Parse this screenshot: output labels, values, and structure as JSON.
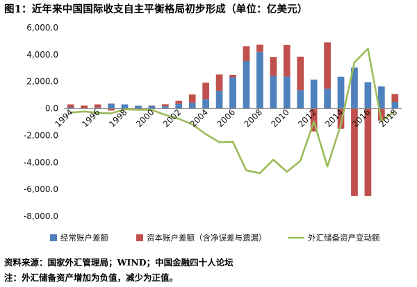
{
  "page": {
    "title": "图1：近年来中国国际收支自主平衡格局初步形成（单位：亿美元）",
    "source_note": "资料来源：国家外汇管理局；WIND；中国金融四十人论坛",
    "sign_note": "注：外汇储备资产增加为负值，减少为正值。"
  },
  "colors": {
    "current_account": "#4f81bd",
    "capital_account": "#c0504d",
    "reserve_change": "#9bbb59",
    "axis": "#888888"
  },
  "chart_data": {
    "type": "bar",
    "stacked": true,
    "title": "图1：近年来中国国际收支自主平衡格局初步形成（单位：亿美元）",
    "categories": [
      "1994",
      "1995",
      "1996",
      "1997",
      "1998",
      "1999",
      "2000",
      "2001",
      "2002",
      "2003",
      "2004",
      "2005",
      "2006",
      "2007",
      "2008",
      "2009",
      "2010",
      "2011",
      "2012",
      "2013",
      "2014",
      "2015",
      "2016",
      "2017",
      "2018"
    ],
    "tick_labels": [
      "1994",
      "1996",
      "1998",
      "2000",
      "2002",
      "2004",
      "2006",
      "2008",
      "2010",
      "2012",
      "2014",
      "2016",
      "2018"
    ],
    "ylim": [
      -8000,
      6000
    ],
    "yticks": [
      -8000,
      -6000,
      -4000,
      -2000,
      0,
      2000,
      4000,
      6000
    ],
    "ytick_labels": [
      "-8,000.0",
      "-6,000.0",
      "-4,000.0",
      "-2,000.0",
      "0.0",
      "2,000.0",
      "4,000.0",
      "6,000.0"
    ],
    "grid": false,
    "legend_position": "bottom",
    "series": [
      {
        "name": "经常账户差额",
        "type": "bar",
        "values": [
          80,
          20,
          70,
          370,
          310,
          210,
          200,
          170,
          350,
          430,
          690,
          1320,
          2320,
          3530,
          4210,
          2430,
          2380,
          1360,
          2150,
          1480,
          2360,
          3040,
          1960,
          1650,
          490
        ]
      },
      {
        "name": "资本账户差额（含净误差与遗漏）",
        "type": "bar",
        "values": [
          230,
          200,
          240,
          -150,
          -70,
          -50,
          20,
          150,
          220,
          610,
          1230,
          1210,
          180,
          1100,
          530,
          1400,
          2340,
          2490,
          -1700,
          3430,
          -1500,
          -6500,
          -6500,
          -900,
          580
        ]
      },
      {
        "name": "外汇储备资产变动额",
        "type": "line",
        "values": [
          -300,
          -220,
          -320,
          -360,
          -60,
          -90,
          -100,
          -470,
          -760,
          -1170,
          -1900,
          -2500,
          -2470,
          -4600,
          -4800,
          -3800,
          -4700,
          -3880,
          -970,
          -4300,
          -1180,
          3430,
          4440,
          -920,
          -190
        ]
      }
    ]
  }
}
